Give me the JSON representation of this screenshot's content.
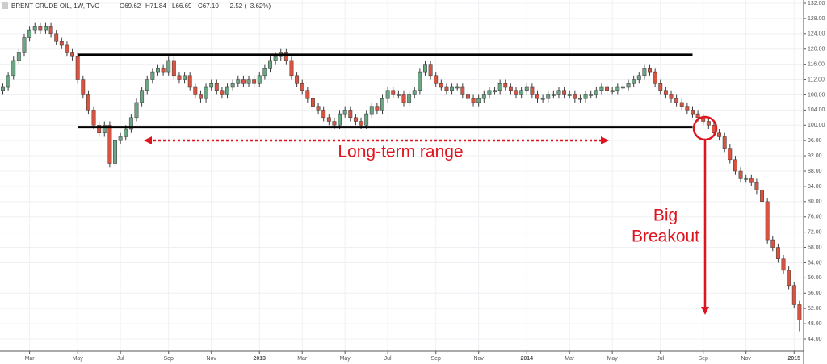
{
  "chart_data": {
    "type": "candlestick",
    "symbol": "BRENT CRUDE OIL, 1W, TVC",
    "quote": [
      "O69.62",
      "H71.84",
      "L66.69",
      "C67.10",
      "−2.52 (−3.62%)"
    ],
    "annotations": [
      "Long-term range",
      "Big",
      "Breakout"
    ],
    "categories": [
      null,
      null,
      null,
      null,
      null,
      "Mar",
      null,
      null,
      null,
      null,
      null,
      null,
      null,
      null,
      "May",
      null,
      null,
      null,
      null,
      null,
      null,
      null,
      "Jul",
      null,
      null,
      null,
      null,
      null,
      null,
      null,
      null,
      "Sep",
      null,
      null,
      null,
      null,
      null,
      null,
      null,
      "Nov",
      null,
      null,
      null,
      null,
      null,
      null,
      null,
      null,
      "2013",
      null,
      null,
      null,
      null,
      null,
      null,
      null,
      "Mar",
      null,
      null,
      null,
      null,
      null,
      null,
      null,
      "May",
      null,
      null,
      null,
      null,
      null,
      null,
      null,
      "Jul",
      null,
      null,
      null,
      null,
      null,
      null,
      null,
      null,
      "Sep",
      null,
      null,
      null,
      null,
      null,
      null,
      null,
      "Nov",
      null,
      null,
      null,
      null,
      null,
      null,
      null,
      null,
      "2014",
      null,
      null,
      null,
      null,
      null,
      null,
      null,
      "Mar",
      null,
      null,
      null,
      null,
      null,
      null,
      null,
      "May",
      null,
      null,
      null,
      null,
      null,
      null,
      null,
      null,
      "Jul",
      null,
      null,
      null,
      null,
      null,
      null,
      null,
      "Sep",
      null,
      null,
      null,
      null,
      null,
      null,
      null,
      "Nov",
      null,
      null,
      null,
      null,
      null,
      null,
      null,
      null,
      "2015",
      null
    ],
    "open": [
      109,
      110,
      113,
      117,
      119,
      123,
      125,
      126,
      125,
      126,
      124,
      122,
      121,
      119,
      118,
      112,
      108,
      104,
      100,
      98,
      100,
      90,
      96,
      97,
      99,
      102,
      106,
      109,
      112,
      114,
      115,
      114,
      117,
      113,
      112,
      113,
      110,
      108,
      107,
      110,
      111,
      109,
      108,
      110,
      111,
      112,
      111,
      112,
      111,
      113,
      115,
      117,
      118,
      119,
      117,
      113,
      111,
      109,
      107,
      105,
      104,
      102,
      101,
      100,
      103,
      104,
      102,
      101,
      100,
      103,
      105,
      104,
      107,
      109,
      108,
      108,
      106,
      108,
      109,
      114,
      116,
      113,
      111,
      110,
      109,
      110,
      110,
      108,
      107,
      106,
      107,
      108,
      109,
      109,
      111,
      110,
      109,
      108,
      109,
      110,
      108,
      107,
      107,
      108,
      108,
      109,
      108,
      108,
      107,
      107,
      108,
      108,
      109,
      110,
      109,
      109,
      110,
      110,
      111,
      112,
      113,
      115,
      114,
      111,
      109,
      108,
      107,
      106,
      105,
      104,
      103,
      102,
      101,
      100,
      98,
      97,
      94,
      91,
      88,
      86,
      86,
      85,
      83,
      80,
      70,
      68,
      65,
      62,
      58,
      53
    ],
    "high": [
      111,
      114,
      118,
      120,
      124,
      126,
      127,
      127,
      127,
      127,
      125,
      123,
      122,
      120,
      119,
      113,
      109,
      105,
      101,
      101,
      101,
      97,
      98,
      100,
      103,
      107,
      110,
      113,
      115,
      116,
      116,
      118,
      118,
      114,
      114,
      114,
      111,
      109,
      111,
      112,
      112,
      110,
      111,
      112,
      113,
      113,
      113,
      113,
      114,
      116,
      118,
      119,
      120,
      120,
      118,
      114,
      112,
      110,
      108,
      106,
      105,
      103,
      102,
      104,
      105,
      105,
      103,
      102,
      104,
      106,
      106,
      108,
      110,
      110,
      109,
      109,
      109,
      110,
      115,
      117,
      117,
      114,
      112,
      111,
      111,
      111,
      111,
      109,
      108,
      108,
      109,
      110,
      110,
      112,
      112,
      111,
      110,
      110,
      111,
      111,
      109,
      108,
      109,
      109,
      110,
      110,
      109,
      109,
      108,
      109,
      109,
      110,
      111,
      111,
      110,
      111,
      111,
      112,
      113,
      114,
      116,
      116,
      115,
      112,
      110,
      109,
      108,
      107,
      106,
      105,
      104,
      103,
      102,
      101,
      99,
      98,
      95,
      92,
      89,
      87,
      87,
      86,
      84,
      81,
      71,
      69,
      66,
      63,
      59,
      54
    ],
    "low": [
      108,
      109,
      112,
      116,
      118,
      122,
      124,
      124,
      124,
      123,
      121,
      120,
      118,
      117,
      111,
      107,
      103,
      99,
      97,
      97,
      89,
      89,
      95,
      96,
      98,
      101,
      105,
      108,
      111,
      113,
      113,
      113,
      112,
      111,
      111,
      109,
      107,
      106,
      106,
      109,
      108,
      107,
      107,
      109,
      110,
      110,
      110,
      110,
      110,
      112,
      114,
      116,
      117,
      116,
      112,
      110,
      108,
      106,
      104,
      103,
      101,
      100,
      99,
      99,
      102,
      101,
      100,
      99,
      99,
      102,
      103,
      103,
      106,
      107,
      107,
      105,
      105,
      107,
      108,
      113,
      112,
      110,
      109,
      108,
      108,
      109,
      107,
      106,
      105,
      105,
      106,
      107,
      108,
      108,
      109,
      108,
      107,
      107,
      108,
      107,
      106,
      106,
      106,
      107,
      107,
      107,
      107,
      106,
      106,
      106,
      107,
      107,
      108,
      108,
      108,
      108,
      109,
      109,
      110,
      111,
      112,
      113,
      110,
      108,
      107,
      106,
      105,
      104,
      103,
      102,
      101,
      100,
      99,
      97,
      96,
      93,
      90,
      87,
      85,
      85,
      84,
      82,
      79,
      69,
      67,
      64,
      61,
      57,
      52,
      46
    ],
    "close": [
      110,
      113,
      117,
      119,
      123,
      125,
      126,
      125,
      126,
      124,
      122,
      121,
      119,
      118,
      112,
      108,
      104,
      100,
      98,
      100,
      90,
      96,
      97,
      99,
      102,
      106,
      109,
      112,
      114,
      115,
      114,
      117,
      113,
      112,
      113,
      110,
      108,
      107,
      110,
      111,
      109,
      108,
      110,
      111,
      112,
      111,
      112,
      111,
      113,
      115,
      117,
      118,
      119,
      117,
      113,
      111,
      109,
      107,
      105,
      104,
      102,
      101,
      100,
      103,
      104,
      102,
      101,
      100,
      103,
      105,
      104,
      107,
      109,
      108,
      108,
      106,
      108,
      109,
      114,
      116,
      113,
      111,
      110,
      109,
      110,
      110,
      108,
      107,
      106,
      107,
      108,
      109,
      109,
      111,
      110,
      109,
      108,
      109,
      110,
      108,
      107,
      107,
      108,
      108,
      109,
      108,
      108,
      107,
      107,
      108,
      108,
      109,
      110,
      109,
      109,
      110,
      110,
      111,
      112,
      113,
      115,
      114,
      111,
      109,
      108,
      107,
      106,
      105,
      104,
      103,
      102,
      101,
      100,
      98,
      97,
      94,
      91,
      88,
      86,
      86,
      85,
      83,
      80,
      70,
      68,
      65,
      62,
      58,
      53,
      49
    ],
    "up_color": "#6ba583",
    "down_color": "#d75442",
    "levels": [
      118.5,
      99.5
    ],
    "ylim": [
      44,
      132
    ],
    "yticks": [
      {
        "value": 44,
        "label": "44.00"
      },
      {
        "value": 48,
        "label": "48.00"
      },
      {
        "value": 52,
        "label": "52.00"
      },
      {
        "value": 56,
        "label": "56.00"
      },
      {
        "value": 60,
        "label": "60.00"
      },
      {
        "value": 64,
        "label": "64.00"
      },
      {
        "value": 68,
        "label": "68.00"
      },
      {
        "value": 72,
        "label": "72.00"
      },
      {
        "value": 76,
        "label": "76.00"
      },
      {
        "value": 80,
        "label": "80.00"
      },
      {
        "value": 84,
        "label": "84.00"
      },
      {
        "value": 88,
        "label": "88.00"
      },
      {
        "value": 92,
        "label": "92.00"
      },
      {
        "value": 96,
        "label": "96.00"
      },
      {
        "value": 100,
        "label": "100.00"
      },
      {
        "value": 104,
        "label": "104.00"
      },
      {
        "value": 108,
        "label": "108.00"
      },
      {
        "value": 112,
        "label": "112.00"
      },
      {
        "value": 116,
        "label": "116.00"
      },
      {
        "value": 120,
        "label": "120.00"
      },
      {
        "value": 124,
        "label": "124.00"
      },
      {
        "value": 128,
        "label": "128.00"
      },
      {
        "value": 132,
        "label": "132.00"
      }
    ],
    "grid": true
  }
}
